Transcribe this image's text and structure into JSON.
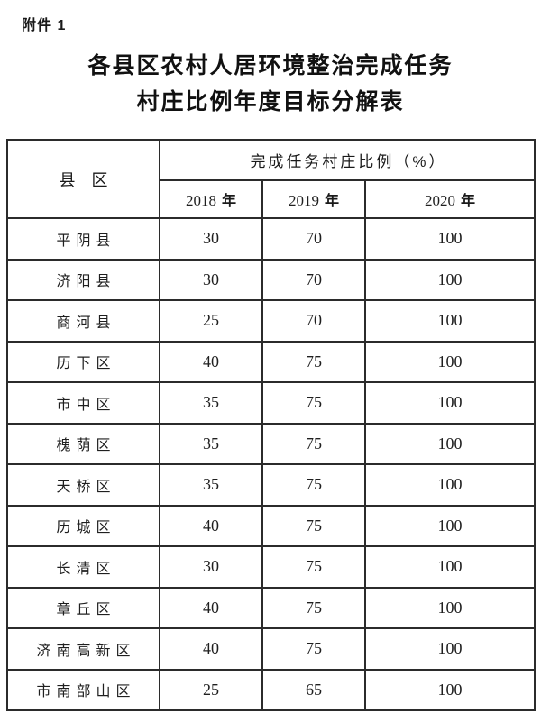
{
  "page": {
    "attachment_label": "附件 1",
    "title_line1": "各县区农村人居环境整治完成任务",
    "title_line2": "村庄比例年度目标分解表"
  },
  "table": {
    "county_header": "县　区",
    "group_header": "完成任务村庄比例（%）",
    "years": [
      {
        "num": "2018",
        "suffix": "年"
      },
      {
        "num": "2019",
        "suffix": "年"
      },
      {
        "num": "2020",
        "suffix": "年"
      }
    ],
    "rows": [
      {
        "name": "平阴县",
        "y2018": "30",
        "y2019": "70",
        "y2020": "100"
      },
      {
        "name": "济阳县",
        "y2018": "30",
        "y2019": "70",
        "y2020": "100"
      },
      {
        "name": "商河县",
        "y2018": "25",
        "y2019": "70",
        "y2020": "100"
      },
      {
        "name": "历下区",
        "y2018": "40",
        "y2019": "75",
        "y2020": "100"
      },
      {
        "name": "市中区",
        "y2018": "35",
        "y2019": "75",
        "y2020": "100"
      },
      {
        "name": "槐荫区",
        "y2018": "35",
        "y2019": "75",
        "y2020": "100"
      },
      {
        "name": "天桥区",
        "y2018": "35",
        "y2019": "75",
        "y2020": "100"
      },
      {
        "name": "历城区",
        "y2018": "40",
        "y2019": "75",
        "y2020": "100"
      },
      {
        "name": "长清区",
        "y2018": "30",
        "y2019": "75",
        "y2020": "100"
      },
      {
        "name": "章丘区",
        "y2018": "40",
        "y2019": "75",
        "y2020": "100"
      },
      {
        "name": "济南高新区",
        "y2018": "40",
        "y2019": "75",
        "y2020": "100"
      },
      {
        "name": "市南部山区",
        "y2018": "25",
        "y2019": "65",
        "y2020": "100"
      }
    ]
  },
  "colors": {
    "background": "#ffffff",
    "text": "#1f1f1f",
    "border": "#2b2b2b"
  }
}
